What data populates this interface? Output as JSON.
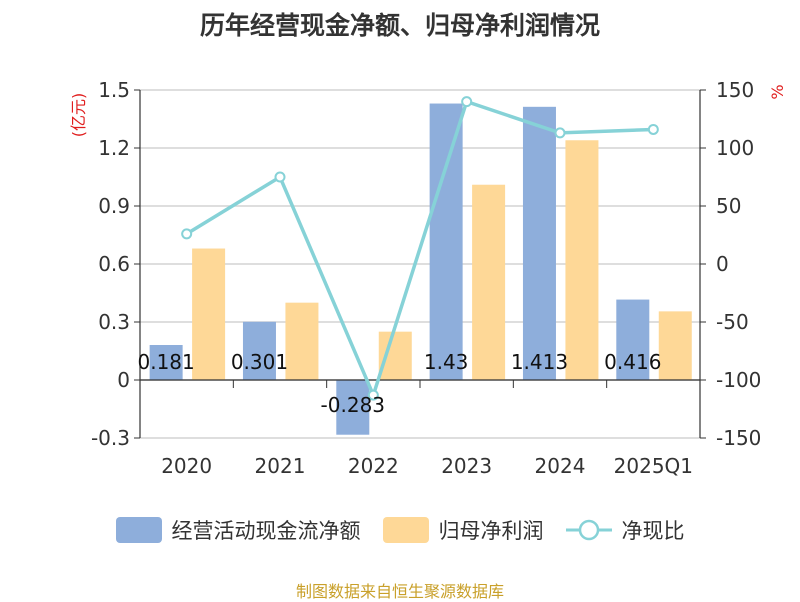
{
  "chart_data": {
    "type": "bar",
    "title": "历年经营现金净额、归母净利润情况",
    "categories": [
      "2020",
      "2021",
      "2022",
      "2023",
      "2024",
      "2025Q1"
    ],
    "series": [
      {
        "name": "经营活动现金流净额",
        "type": "bar",
        "axis": "left",
        "color": "#8eaedb",
        "values": [
          0.181,
          0.301,
          -0.283,
          1.43,
          1.413,
          0.416
        ],
        "labels": [
          "0.181",
          "0.301",
          "-0.283",
          "1.43",
          "1.413",
          "0.416"
        ]
      },
      {
        "name": "归母净利润",
        "type": "bar",
        "axis": "left",
        "color": "#fed897",
        "values": [
          0.68,
          0.4,
          0.25,
          1.01,
          1.24,
          0.355
        ]
      },
      {
        "name": "净现比",
        "type": "line",
        "axis": "right",
        "color": "#86d2d7",
        "values": [
          26,
          75,
          -113,
          140,
          113,
          116
        ]
      }
    ],
    "left_axis": {
      "unit": "(亿元)",
      "ylim": [
        -0.3,
        1.5
      ],
      "ticks": [
        "1.5",
        "1.2",
        "0.9",
        "0.6",
        "0.3",
        "0",
        "-0.3"
      ]
    },
    "right_axis": {
      "unit": "%",
      "ylim": [
        -150,
        150
      ],
      "ticks": [
        "150",
        "100",
        "50",
        "0",
        "-50",
        "-100",
        "-150"
      ]
    },
    "grid": true,
    "legend_position": "bottom"
  },
  "source": "制图数据来自恒生聚源数据库"
}
